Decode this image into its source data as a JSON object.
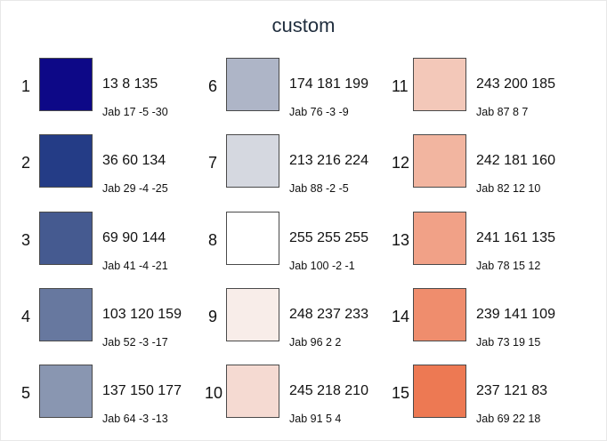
{
  "title": "custom",
  "swatches": [
    {
      "n": "1",
      "hex": "#0d0887",
      "rgb": "13 8 135",
      "jab": "Jab 17 -5 -30"
    },
    {
      "n": "2",
      "hex": "#243c86",
      "rgb": "36 60 134",
      "jab": "Jab 29 -4 -25"
    },
    {
      "n": "3",
      "hex": "#455a90",
      "rgb": "69 90 144",
      "jab": "Jab 41 -4 -21"
    },
    {
      "n": "4",
      "hex": "#67789f",
      "rgb": "103 120 159",
      "jab": "Jab 52 -3 -17"
    },
    {
      "n": "5",
      "hex": "#8996b1",
      "rgb": "137 150 177",
      "jab": "Jab 64 -3 -13"
    },
    {
      "n": "6",
      "hex": "#aeb5c7",
      "rgb": "174 181 199",
      "jab": "Jab 76 -3 -9"
    },
    {
      "n": "7",
      "hex": "#d5d8e0",
      "rgb": "213 216 224",
      "jab": "Jab 88 -2 -5"
    },
    {
      "n": "8",
      "hex": "#ffffff",
      "rgb": "255 255 255",
      "jab": "Jab 100 -2 -1"
    },
    {
      "n": "9",
      "hex": "#f8ede9",
      "rgb": "248 237 233",
      "jab": "Jab 96 2 2"
    },
    {
      "n": "10",
      "hex": "#f5dad2",
      "rgb": "245 218 210",
      "jab": "Jab 91 5 4"
    },
    {
      "n": "11",
      "hex": "#f3c8b9",
      "rgb": "243 200 185",
      "jab": "Jab 87 8 7"
    },
    {
      "n": "12",
      "hex": "#f2b5a0",
      "rgb": "242 181 160",
      "jab": "Jab 82 12 10"
    },
    {
      "n": "13",
      "hex": "#f1a187",
      "rgb": "241 161 135",
      "jab": "Jab 78 15 12"
    },
    {
      "n": "14",
      "hex": "#ef8d6d",
      "rgb": "239 141 109",
      "jab": "Jab 73 19 15"
    },
    {
      "n": "15",
      "hex": "#ed7953",
      "rgb": "237 121 83",
      "jab": "Jab 69 22 18"
    }
  ]
}
